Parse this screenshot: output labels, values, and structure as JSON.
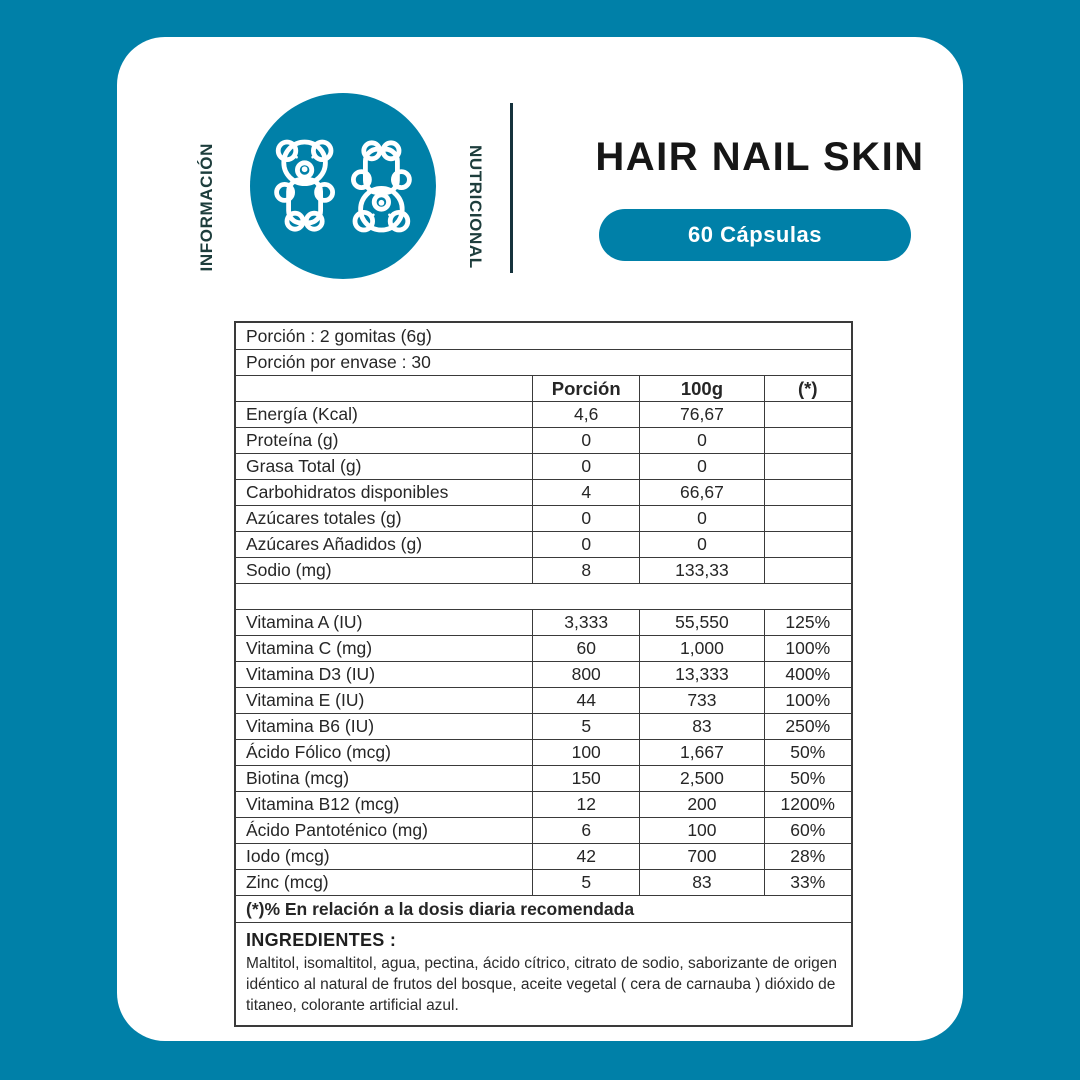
{
  "colors": {
    "teal": "#0080a8",
    "dark_label": "#1d3d3c",
    "border": "#3a3a3a",
    "title_black": "#161616"
  },
  "header": {
    "left_vertical_label": "INFORMACIÓN",
    "right_vertical_label": "NUTRICIONAL",
    "logo_icon": "gummy-bears-icon",
    "title": "HAIR NAIL SKIN",
    "badge": "60 Cápsulas"
  },
  "table": {
    "intro_rows": [
      "Porción : 2 gomitas (6g)",
      "Porción por envase : 30"
    ],
    "columns": [
      "",
      "Porción",
      "100g",
      "(*)"
    ],
    "macro_rows": [
      {
        "label": "Energía (Kcal)",
        "porcion": "4,6",
        "per100g": "76,67",
        "dv": ""
      },
      {
        "label": "Proteína (g)",
        "porcion": "0",
        "per100g": "0",
        "dv": ""
      },
      {
        "label": "Grasa Total (g)",
        "porcion": "0",
        "per100g": "0",
        "dv": ""
      },
      {
        "label": "Carbohidratos disponibles",
        "porcion": "4",
        "per100g": "66,67",
        "dv": ""
      },
      {
        "label": "Azúcares totales (g)",
        "porcion": "0",
        "per100g": "0",
        "dv": ""
      },
      {
        "label": "Azúcares Añadidos (g)",
        "porcion": "0",
        "per100g": "0",
        "dv": ""
      },
      {
        "label": "Sodio (mg)",
        "porcion": "8",
        "per100g": "133,33",
        "dv": ""
      }
    ],
    "vitamin_rows": [
      {
        "label": "Vitamina A (IU)",
        "porcion": "3,333",
        "per100g": "55,550",
        "dv": "125%"
      },
      {
        "label": "Vitamina C (mg)",
        "porcion": "60",
        "per100g": "1,000",
        "dv": "100%"
      },
      {
        "label": "Vitamina D3 (IU)",
        "porcion": "800",
        "per100g": "13,333",
        "dv": "400%"
      },
      {
        "label": "Vitamina E (IU)",
        "porcion": "44",
        "per100g": "733",
        "dv": "100%"
      },
      {
        "label": "Vitamina B6 (IU)",
        "porcion": "5",
        "per100g": "83",
        "dv": "250%"
      },
      {
        "label": "Ácido Fólico (mcg)",
        "porcion": "100",
        "per100g": "1,667",
        "dv": "50%"
      },
      {
        "label": "Biotina (mcg)",
        "porcion": "150",
        "per100g": "2,500",
        "dv": "50%"
      },
      {
        "label": "Vitamina B12 (mcg)",
        "porcion": "12",
        "per100g": "200",
        "dv": "1200%"
      },
      {
        "label": "Ácido Pantoténico (mg)",
        "porcion": "6",
        "per100g": "100",
        "dv": "60%"
      },
      {
        "label": "Iodo (mcg)",
        "porcion": "42",
        "per100g": "700",
        "dv": "28%"
      },
      {
        "label": "Zinc (mcg)",
        "porcion": "5",
        "per100g": "83",
        "dv": "33%"
      }
    ],
    "footnote": "(*)% En relación a la dosis diaria recomendada"
  },
  "ingredients": {
    "heading": "INGREDIENTES :",
    "text": "Maltitol, isomaltitol, agua, pectina, ácido cítrico, citrato de sodio, saborizante de origen idéntico al natural de frutos del bosque, aceite vegetal ( cera de carnauba ) dióxido de titaneo, colorante artificial azul."
  }
}
